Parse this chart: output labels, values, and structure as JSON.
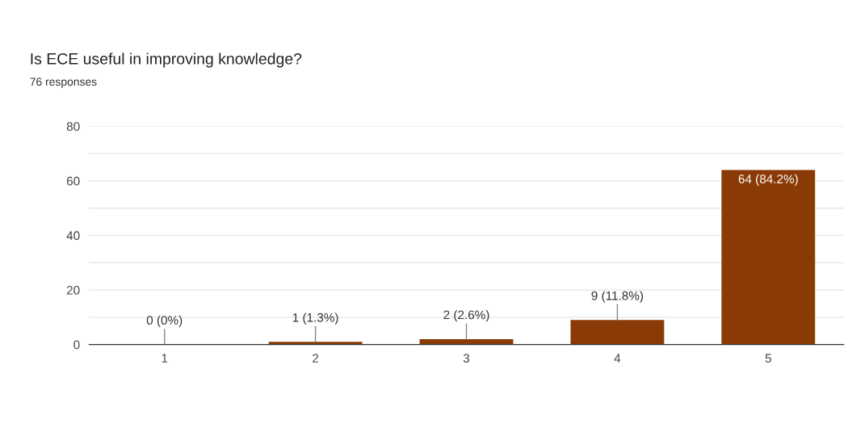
{
  "chart_data": {
    "type": "bar",
    "title": "Is ECE useful in improving knowledge?",
    "subtitle": "76 responses",
    "categories": [
      "1",
      "2",
      "3",
      "4",
      "5"
    ],
    "values": [
      0,
      1,
      2,
      9,
      64
    ],
    "value_labels": [
      "0 (0%)",
      "1 (1.3%)",
      "2 (2.6%)",
      "9 (11.8%)",
      "64 (84.2%)"
    ],
    "color": "#8a3b05",
    "ylim": [
      0,
      80
    ],
    "yticks": [
      0,
      {
        "value": 10,
        "label": null
      },
      20,
      {
        "value": 30,
        "label": null
      },
      40,
      {
        "value": 50,
        "label": null
      },
      60,
      {
        "value": 70,
        "label": null
      },
      80
    ],
    "grid": "y"
  }
}
